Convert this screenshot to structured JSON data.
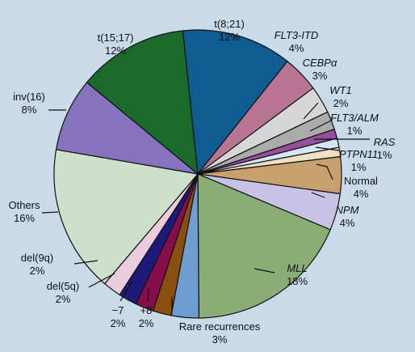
{
  "chart_data": {
    "type": "pie",
    "start_angle_deg": -6,
    "direction": "clockwise",
    "slices": [
      {
        "name": "t(8;21)",
        "value": 12,
        "pct_label": "12%",
        "italic": false,
        "color": "#0f5c92"
      },
      {
        "name": "FLT3-ITD",
        "value": 4,
        "pct_label": "4%",
        "italic": true,
        "color": "#b87592"
      },
      {
        "name": "CEBPα",
        "value": 3,
        "pct_label": "3%",
        "italic": true,
        "color": "#d6d6d6"
      },
      {
        "name": "WT1",
        "value": 2,
        "pct_label": "2%",
        "italic": true,
        "color": "#ababab"
      },
      {
        "name": "FLT3/ALM",
        "value": 1,
        "pct_label": "1%",
        "italic": true,
        "color": "#96509b"
      },
      {
        "name": "RAS",
        "value": 1,
        "pct_label": "1%",
        "italic": true,
        "color": "#d4e5f4"
      },
      {
        "name": "PTPN11",
        "value": 1,
        "pct_label": "1%",
        "italic": true,
        "color": "#eee0c3"
      },
      {
        "name": "Normal",
        "value": 4,
        "pct_label": "4%",
        "italic": false,
        "color": "#c8a06e"
      },
      {
        "name": "NPM",
        "value": 4,
        "pct_label": "4%",
        "italic": true,
        "color": "#c8c3e6"
      },
      {
        "name": "MLL",
        "value": 18,
        "pct_label": "18%",
        "italic": true,
        "color": "#88ae76"
      },
      {
        "name": "Rare recurrences",
        "value": 3,
        "pct_label": "3%",
        "italic": false,
        "color": "#6e9ed0"
      },
      {
        "name": "+8",
        "value": 2,
        "pct_label": "2%",
        "italic": false,
        "color": "#8a4f10"
      },
      {
        "name": "−7",
        "value": 2,
        "pct_label": "2%",
        "italic": false,
        "color": "#870d4a"
      },
      {
        "name": "del(5q)",
        "value": 2,
        "pct_label": "2%",
        "italic": false,
        "color": "#1e1a7a"
      },
      {
        "name": "del(9q)",
        "value": 2,
        "pct_label": "2%",
        "italic": false,
        "color": "#ebccde"
      },
      {
        "name": "Others",
        "value": 16,
        "pct_label": "16%",
        "italic": false,
        "color": "#cfe0ca"
      },
      {
        "name": "inv(16)",
        "value": 8,
        "pct_label": "8%",
        "italic": false,
        "color": "#8574bd"
      },
      {
        "name": "t(15;17)",
        "value": 12,
        "pct_label": "12%",
        "italic": false,
        "color": "#1b6a2c"
      }
    ],
    "title": "",
    "legend": "none"
  }
}
